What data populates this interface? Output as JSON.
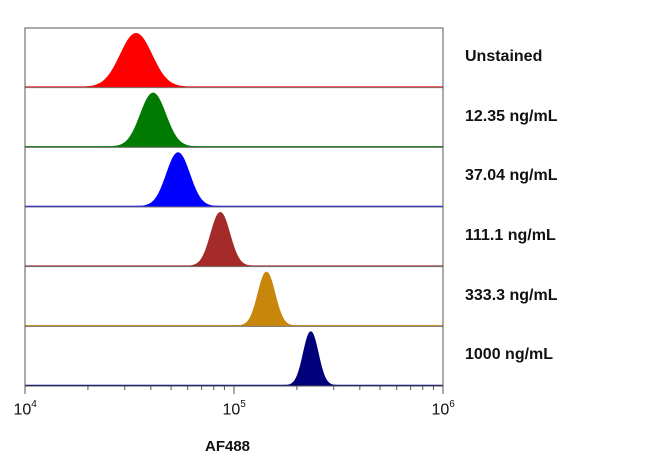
{
  "chart_data": {
    "type": "histogram-stack",
    "xlabel": "AF488",
    "x_scale": "log",
    "xlim": [
      10000,
      1000000
    ],
    "ticks": [
      {
        "base": "10",
        "exp": "4",
        "value": 10000
      },
      {
        "base": "10",
        "exp": "5",
        "value": 100000
      },
      {
        "base": "10",
        "exp": "6",
        "value": 1000000
      }
    ],
    "series": [
      {
        "name": "Unstained",
        "color": "#ff0000",
        "peak": 34000,
        "spread": 0.075
      },
      {
        "name": "12.35 ng/mL",
        "color": "#007a00",
        "peak": 41000,
        "spread": 0.06
      },
      {
        "name": "37.04 ng/mL",
        "color": "#0000ff",
        "peak": 54000,
        "spread": 0.055
      },
      {
        "name": "111.1 ng/mL",
        "color": "#a52a2a",
        "peak": 86000,
        "spread": 0.045
      },
      {
        "name": "333.3 ng/mL",
        "color": "#c8860b",
        "peak": 143000,
        "spread": 0.04
      },
      {
        "name": "1000 ng/mL",
        "color": "#00007a",
        "peak": 233000,
        "spread": 0.035
      }
    ]
  }
}
